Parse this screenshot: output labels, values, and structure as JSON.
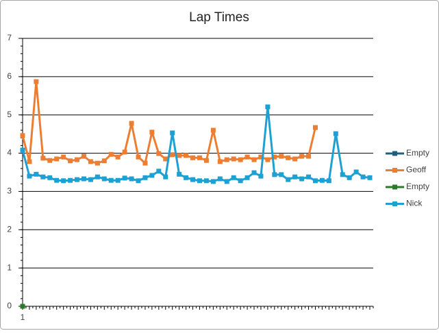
{
  "chart_data": {
    "type": "line",
    "title": "Lap Times",
    "categories": [
      "1",
      null,
      null,
      null,
      null,
      null,
      null,
      null,
      null,
      null,
      null,
      null,
      null,
      null,
      null,
      null,
      null,
      null,
      null,
      null,
      null,
      null,
      null,
      null,
      null,
      null,
      null,
      null,
      null,
      null,
      null,
      null,
      null,
      null,
      null,
      null,
      null,
      null,
      null,
      null,
      null,
      null,
      null,
      null,
      null,
      null,
      null,
      null,
      null,
      null,
      null,
      null
    ],
    "ylim": [
      0,
      7
    ],
    "yticks": [
      0,
      1,
      2,
      3,
      4,
      5,
      6,
      7
    ],
    "grid": true,
    "legend": "right",
    "series": [
      {
        "name": "Empty",
        "color": "#1d5f7e",
        "values": [
          0,
          null,
          null,
          null,
          null,
          null,
          null,
          null,
          null,
          null,
          null,
          null,
          null,
          null,
          null,
          null,
          null,
          null,
          null,
          null,
          null,
          null,
          null,
          null,
          null,
          null,
          null,
          null,
          null,
          null,
          null,
          null,
          null,
          null,
          null,
          null,
          null,
          null,
          null,
          null,
          null,
          null,
          null,
          null,
          null,
          null,
          null,
          null,
          null,
          null,
          null,
          null
        ]
      },
      {
        "name": "Geoff",
        "color": "#ed7d31",
        "values": [
          4.46,
          3.78,
          5.87,
          3.87,
          3.81,
          3.85,
          3.9,
          3.8,
          3.83,
          3.92,
          3.78,
          3.74,
          3.8,
          3.97,
          3.9,
          4.03,
          4.78,
          3.9,
          3.74,
          4.55,
          3.99,
          3.85,
          3.96,
          3.94,
          3.94,
          3.88,
          3.88,
          3.81,
          4.6,
          3.78,
          3.83,
          3.85,
          3.83,
          3.9,
          3.83,
          3.9,
          3.83,
          3.9,
          3.92,
          3.88,
          3.85,
          3.92,
          3.92,
          4.67,
          null,
          null,
          null,
          null,
          null,
          null,
          null,
          null
        ]
      },
      {
        "name": "Empty",
        "color": "#2a7a2a",
        "values": [
          0,
          null,
          null,
          null,
          null,
          null,
          null,
          null,
          null,
          null,
          null,
          null,
          null,
          null,
          null,
          null,
          null,
          null,
          null,
          null,
          null,
          null,
          null,
          null,
          null,
          null,
          null,
          null,
          null,
          null,
          null,
          null,
          null,
          null,
          null,
          null,
          null,
          null,
          null,
          null,
          null,
          null,
          null,
          null,
          null,
          null,
          null,
          null,
          null,
          null,
          null,
          null
        ]
      },
      {
        "name": "Nick",
        "color": "#1fa0d2",
        "values": [
          4.08,
          3.4,
          3.45,
          3.38,
          3.36,
          3.29,
          3.28,
          3.29,
          3.31,
          3.33,
          3.31,
          3.38,
          3.33,
          3.29,
          3.29,
          3.35,
          3.33,
          3.28,
          3.36,
          3.42,
          3.53,
          3.38,
          4.53,
          3.45,
          3.36,
          3.31,
          3.28,
          3.28,
          3.26,
          3.33,
          3.26,
          3.36,
          3.28,
          3.36,
          3.49,
          3.4,
          5.21,
          3.44,
          3.44,
          3.31,
          3.38,
          3.33,
          3.38,
          3.28,
          3.29,
          3.28,
          4.51,
          3.44,
          3.36,
          3.51,
          3.38,
          3.36
        ]
      }
    ]
  }
}
